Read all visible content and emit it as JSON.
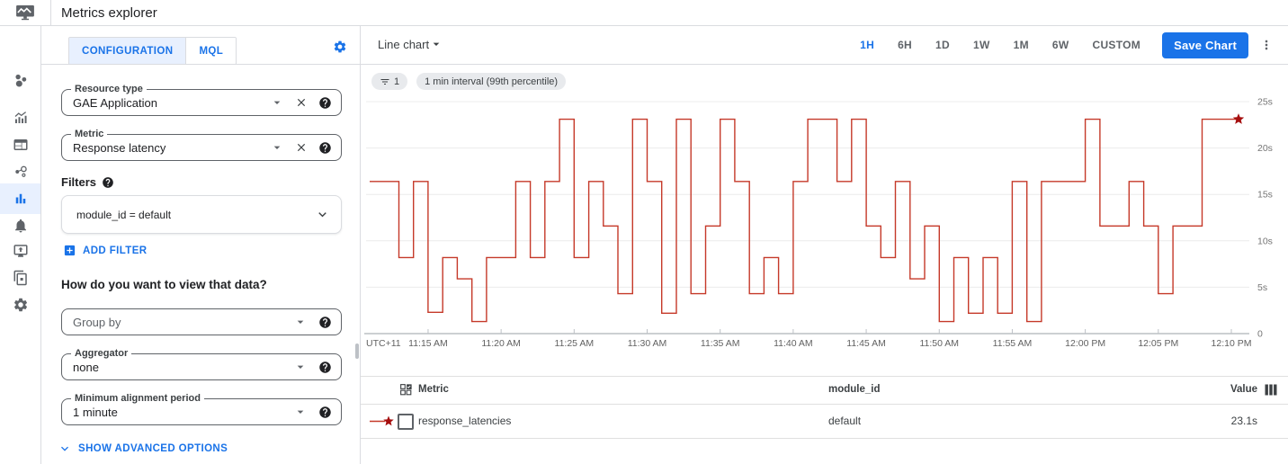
{
  "app": {
    "title": "Metrics explorer"
  },
  "sidebar": {
    "items": [
      {
        "name": "overview",
        "icon": "monitoring-overview-icon",
        "active": false
      },
      {
        "name": "metrics",
        "icon": "trend-chart-icon",
        "active": false
      },
      {
        "name": "dashboards",
        "icon": "dashboards-icon",
        "active": false
      },
      {
        "name": "services",
        "icon": "services-icon",
        "active": false
      },
      {
        "name": "metrics-explorer",
        "icon": "bar-chart-icon",
        "active": true
      },
      {
        "name": "alerting",
        "icon": "bell-icon",
        "active": false
      },
      {
        "name": "uptime-checks",
        "icon": "uptime-monitor-icon",
        "active": false
      },
      {
        "name": "groups",
        "icon": "groups-icon",
        "active": false
      },
      {
        "name": "settings",
        "icon": "gear-icon",
        "active": false
      }
    ]
  },
  "config": {
    "tabs": [
      {
        "label": "CONFIGURATION",
        "active": true
      },
      {
        "label": "MQL",
        "active": false
      }
    ],
    "resource_type": {
      "label": "Resource type",
      "value": "GAE Application"
    },
    "metric": {
      "label": "Metric",
      "value": "Response latency"
    },
    "filters_heading": "Filters",
    "filter_chip": "module_id = default",
    "add_filter_label": "ADD FILTER",
    "view_question": "How do you want to view that data?",
    "group_by_placeholder": "Group by",
    "aggregator": {
      "label": "Aggregator",
      "value": "none"
    },
    "min_alignment": {
      "label": "Minimum alignment period",
      "value": "1 minute"
    },
    "advanced_label": "SHOW ADVANCED OPTIONS"
  },
  "chart_header": {
    "type_label": "Line chart",
    "ranges": [
      "1H",
      "6H",
      "1D",
      "1W",
      "1M",
      "6W",
      "CUSTOM"
    ],
    "active_range": "1H",
    "save_label": "Save Chart"
  },
  "chips": {
    "filter_count": "1",
    "interval_label": "1 min interval (99th percentile)"
  },
  "chart_data": {
    "type": "line",
    "step": true,
    "title": "",
    "unit": "s",
    "ylim": [
      0,
      25
    ],
    "x_start": "11:11 AM",
    "x_interval_minutes": 1,
    "series": [
      {
        "name": "response_latencies",
        "color": "#c53929",
        "marker_color": "#a50e0e",
        "values": [
          16.4,
          16.4,
          8.2,
          16.4,
          2.3,
          8.2,
          5.9,
          1.3,
          8.2,
          8.2,
          16.4,
          8.2,
          16.4,
          23.1,
          8.2,
          16.4,
          11.6,
          4.3,
          23.1,
          16.4,
          2.2,
          23.1,
          4.3,
          11.6,
          23.1,
          16.4,
          4.3,
          8.2,
          4.3,
          16.4,
          23.1,
          23.1,
          16.4,
          23.1,
          11.6,
          8.2,
          16.4,
          5.9,
          11.6,
          1.3,
          8.2,
          2.2,
          8.2,
          2.2,
          16.4,
          1.3,
          16.4,
          16.4,
          16.4,
          23.1,
          11.6,
          11.6,
          16.4,
          11.6,
          4.3,
          11.6,
          11.6,
          23.1,
          23.1,
          23.1
        ]
      }
    ],
    "x_ticks": [
      {
        "label": "UTC+11",
        "t": -1
      },
      {
        "label": "11:15 AM",
        "t": 4
      },
      {
        "label": "11:20 AM",
        "t": 9
      },
      {
        "label": "11:25 AM",
        "t": 14
      },
      {
        "label": "11:30 AM",
        "t": 19
      },
      {
        "label": "11:35 AM",
        "t": 24
      },
      {
        "label": "11:40 AM",
        "t": 29
      },
      {
        "label": "11:45 AM",
        "t": 34
      },
      {
        "label": "11:50 AM",
        "t": 39
      },
      {
        "label": "11:55 AM",
        "t": 44
      },
      {
        "label": "12:00 PM",
        "t": 49
      },
      {
        "label": "12:05 PM",
        "t": 54
      },
      {
        "label": "12:10 PM",
        "t": 59
      }
    ],
    "y_ticks": [
      {
        "label": "0",
        "v": 0
      },
      {
        "label": "5s",
        "v": 5
      },
      {
        "label": "10s",
        "v": 10
      },
      {
        "label": "15s",
        "v": 15
      },
      {
        "label": "20s",
        "v": 20
      },
      {
        "label": "25s",
        "v": 25
      }
    ]
  },
  "table": {
    "columns": [
      "Metric",
      "module_id",
      "Value"
    ],
    "rows": [
      {
        "metric": "response_latencies",
        "module_id": "default",
        "value": "23.1s"
      }
    ]
  },
  "colors": {
    "accent": "#1a73e8",
    "active_nav_bg": "#e8f0fe",
    "line": "#c53929",
    "star": "#a50e0e"
  }
}
